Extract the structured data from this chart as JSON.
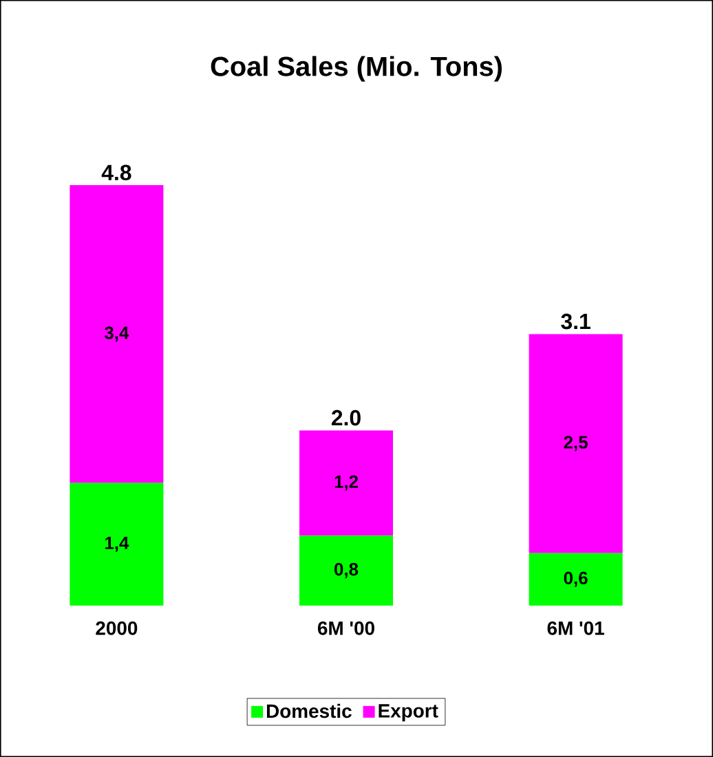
{
  "chart_data": {
    "type": "bar",
    "title": "Coal Sales (Mio. Tons)",
    "categories": [
      "2000",
      "6M '00",
      "6M '01"
    ],
    "stacked": true,
    "legend": "bottom",
    "totals": [
      "4.8",
      "2.0",
      "3.1"
    ],
    "series": [
      {
        "name": "Domestic",
        "color": "#00ff00",
        "values": [
          1.4,
          0.8,
          0.6
        ],
        "value_labels": [
          "1,4",
          "0,8",
          "0,6"
        ]
      },
      {
        "name": "Export",
        "color": "#ff00ff",
        "values": [
          3.4,
          1.2,
          2.5
        ],
        "value_labels": [
          "3,4",
          "1,2",
          "2,5"
        ]
      }
    ]
  }
}
